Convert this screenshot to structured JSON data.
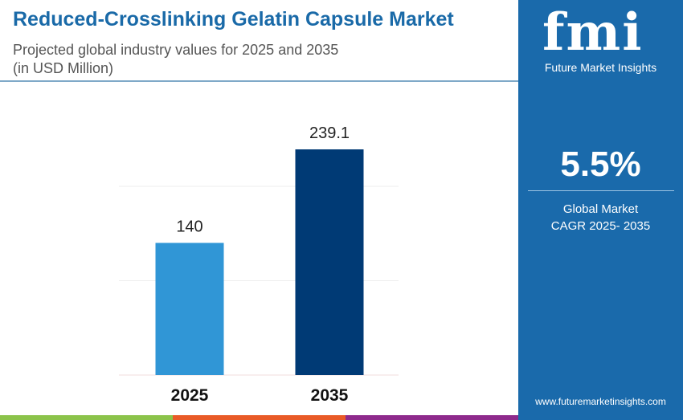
{
  "header": {
    "title": "Reduced-Crosslinking Gelatin Capsule Market",
    "subtitle": "Projected global industry values for 2025 and 2035",
    "unit": "(in USD Million)"
  },
  "panel": {
    "logo_text": "fmi",
    "logo_subtitle": "Future Market Insights",
    "cagr_value": "5.5%",
    "cagr_label_1": "Global Market",
    "cagr_label_2": "CAGR 2025- 2035",
    "website": "www.futuremarketinsights.com"
  },
  "colors": {
    "title": "#1a6aa8",
    "panel": "#1a6aab",
    "bar_2025": "#3096d6",
    "bar_2035": "#003a75",
    "strip": [
      "#8bc34a",
      "#e95a27",
      "#8e2a8c"
    ]
  },
  "chart_data": {
    "type": "bar",
    "categories": [
      "2025",
      "2035"
    ],
    "values": [
      140,
      239.1
    ],
    "value_labels": [
      "140",
      "239.1"
    ],
    "ylim": [
      0,
      240
    ],
    "grid": true,
    "gridlines": [
      100,
      200
    ],
    "xlabel": "",
    "ylabel": ""
  }
}
